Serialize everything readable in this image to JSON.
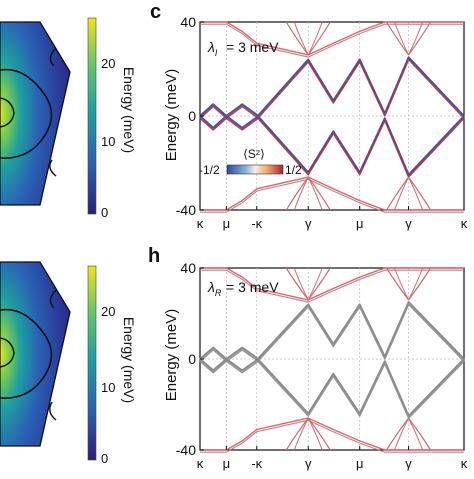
{
  "colors": {
    "band_blue": "#3a5aa8",
    "band_red": "#b8283a",
    "band_dark": "#6a2050",
    "band_gray": "#8c8c8c",
    "cone_red": "#d06a70",
    "map_low": "#2a1f7a",
    "map_high": "#f2e21a"
  },
  "colorbars": [
    {
      "label": "Energy (meV)",
      "ticks": [
        "20",
        "10",
        "0"
      ]
    },
    {
      "label": "Energy (meV)",
      "ticks": [
        "20",
        "10",
        "0"
      ]
    }
  ],
  "spin_legend": {
    "title": "⟨Sᶻ⟩",
    "min_label": "-1/2",
    "max_label": "1/2"
  },
  "chart_data": [
    {
      "panel_label": "c",
      "type": "line",
      "annotation": "= 3 meV",
      "annotation_symbol": "λI",
      "ylabel": "Energy (meV)",
      "ylim": [
        -40,
        40
      ],
      "yticks": [
        "40",
        "0",
        "-40"
      ],
      "xticks": [
        "κ",
        "μ",
        "-κ",
        "γ",
        "μ",
        "γ",
        "κ"
      ],
      "series": [
        {
          "values": [
            0,
            5,
            0,
            -5,
            -0.5,
            24,
            6.5,
            24,
            1,
            25,
            0
          ]
        },
        {
          "values": [
            0,
            -5,
            0,
            5,
            0.5,
            -24,
            -6.5,
            -24,
            -1,
            -25,
            0
          ]
        },
        {
          "values": [
            40,
            40,
            40,
            36,
            31,
            26,
            31,
            36,
            40,
            40,
            40
          ]
        },
        {
          "values": [
            -40,
            -40,
            -40,
            -36,
            -31,
            -26,
            -31,
            -36,
            -40,
            -40,
            -40
          ]
        }
      ]
    },
    {
      "panel_label": "h",
      "type": "line",
      "annotation": "= 3 meV",
      "annotation_symbol": "λR",
      "ylabel": "Energy (meV)",
      "ylim": [
        -40,
        40
      ],
      "yticks": [
        "40",
        "0",
        "-40"
      ],
      "xticks": [
        "κ",
        "μ",
        "-κ",
        "γ",
        "μ",
        "γ",
        "κ"
      ],
      "series": [
        {
          "values": [
            0,
            5,
            0,
            -5,
            -0.5,
            24,
            6.5,
            24,
            1,
            25,
            0
          ]
        },
        {
          "values": [
            0,
            -5,
            0,
            5,
            0.5,
            -24,
            -6.5,
            -24,
            -1,
            -25,
            0
          ]
        },
        {
          "values": [
            40,
            40,
            40,
            36,
            31,
            26,
            31,
            36,
            40,
            40,
            40
          ]
        },
        {
          "values": [
            -40,
            -40,
            -40,
            -36,
            -31,
            -26,
            -31,
            -36,
            -40,
            -40,
            -40
          ]
        }
      ]
    }
  ]
}
